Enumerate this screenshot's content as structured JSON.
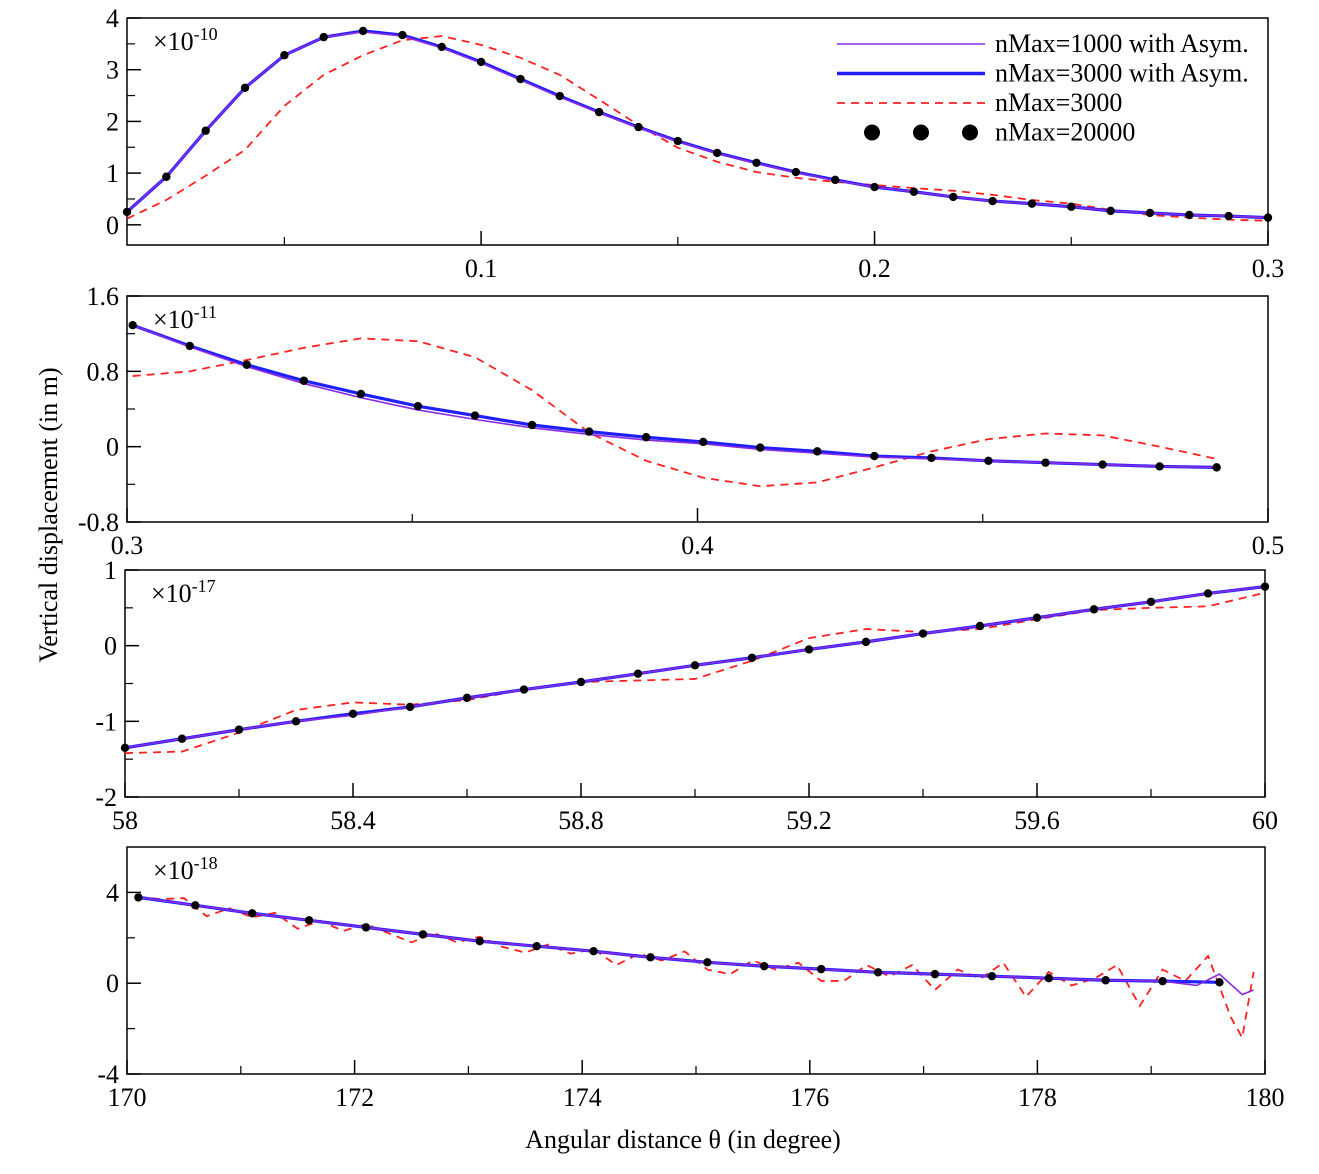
{
  "chart_data": {
    "type": "line",
    "ylabel": "Vertical displacement (in m)",
    "xlabel": "Angular distance θ (in degree)",
    "legend": {
      "placement": "top-right",
      "entries": [
        {
          "name": "nMax=1000 with Asym.",
          "color": "#8a2be2",
          "style": "thin solid"
        },
        {
          "name": "nMax=3000 with Asym.",
          "color": "#1f1fff",
          "style": "thick solid"
        },
        {
          "name": "nMax=3000",
          "color": "#ff2020",
          "style": "dashed"
        },
        {
          "name": "nMax=20000",
          "color": "#000000",
          "style": "dots"
        }
      ]
    },
    "panels": [
      {
        "multiplier": "×10",
        "exponent": "-10",
        "xlim": [
          0.01,
          0.3
        ],
        "ylim": [
          -0.39,
          4
        ],
        "xticks": [
          0.1,
          0.2,
          0.3
        ],
        "xtick_labels": [
          "0.1",
          "0.2",
          "0.3"
        ],
        "xminor": [
          0.05,
          0.15,
          0.25
        ],
        "yticks": [
          0,
          1,
          2,
          3,
          4
        ],
        "ytick_labels": [
          "0",
          "1",
          "2",
          "3",
          "4"
        ],
        "x": [
          0.01,
          0.02,
          0.03,
          0.04,
          0.05,
          0.06,
          0.07,
          0.08,
          0.09,
          0.1,
          0.11,
          0.12,
          0.13,
          0.14,
          0.15,
          0.16,
          0.17,
          0.18,
          0.19,
          0.2,
          0.21,
          0.22,
          0.23,
          0.24,
          0.25,
          0.26,
          0.27,
          0.28,
          0.29,
          0.3
        ],
        "dots": [
          0.25,
          0.93,
          1.82,
          2.65,
          3.28,
          3.63,
          3.75,
          3.67,
          3.44,
          3.15,
          2.82,
          2.49,
          2.18,
          1.89,
          1.62,
          1.39,
          1.2,
          1.02,
          0.87,
          0.73,
          0.64,
          0.54,
          0.46,
          0.41,
          0.35,
          0.27,
          0.23,
          0.19,
          0.17,
          0.14
        ],
        "purple": [
          0.25,
          0.93,
          1.82,
          2.65,
          3.28,
          3.63,
          3.73,
          3.65,
          3.42,
          3.13,
          2.8,
          2.47,
          2.17,
          1.88,
          1.61,
          1.38,
          1.19,
          1.01,
          0.86,
          0.73,
          0.64,
          0.54,
          0.46,
          0.41,
          0.35,
          0.27,
          0.23,
          0.19,
          0.17,
          0.14
        ],
        "blue": [
          0.25,
          0.93,
          1.82,
          2.65,
          3.28,
          3.63,
          3.75,
          3.67,
          3.44,
          3.15,
          2.82,
          2.49,
          2.18,
          1.89,
          1.62,
          1.39,
          1.2,
          1.02,
          0.87,
          0.73,
          0.64,
          0.54,
          0.46,
          0.41,
          0.35,
          0.27,
          0.23,
          0.19,
          0.17,
          0.14
        ],
        "red": [
          0.12,
          0.48,
          0.95,
          1.45,
          2.3,
          2.9,
          3.28,
          3.57,
          3.65,
          3.48,
          3.23,
          2.9,
          2.42,
          1.93,
          1.49,
          1.22,
          1.02,
          0.91,
          0.83,
          0.77,
          0.71,
          0.66,
          0.58,
          0.48,
          0.41,
          0.29,
          0.19,
          0.14,
          0.1,
          0.08
        ]
      },
      {
        "multiplier": "×10",
        "exponent": "-11",
        "xlim": [
          0.3,
          0.5
        ],
        "ylim": [
          -0.8,
          1.6
        ],
        "xticks": [
          0.3,
          0.4,
          0.5
        ],
        "xtick_labels": [
          "0.3",
          "0.4",
          "0.5"
        ],
        "xminor": [
          0.35,
          0.45
        ],
        "yticks": [
          -0.8,
          0,
          0.8,
          1.6
        ],
        "ytick_labels": [
          "-0.8",
          "0",
          "0.8",
          "1.6"
        ],
        "x": [
          0.301,
          0.311,
          0.321,
          0.331,
          0.341,
          0.351,
          0.361,
          0.371,
          0.381,
          0.391,
          0.401,
          0.411,
          0.421,
          0.431,
          0.441,
          0.451,
          0.461,
          0.471,
          0.481,
          0.491
        ],
        "dots": [
          1.29,
          1.07,
          0.87,
          0.7,
          0.56,
          0.43,
          0.33,
          0.23,
          0.16,
          0.1,
          0.05,
          -0.01,
          -0.05,
          -0.1,
          -0.12,
          -0.15,
          -0.17,
          -0.19,
          -0.21,
          -0.22
        ],
        "purple": [
          1.29,
          1.06,
          0.85,
          0.67,
          0.52,
          0.39,
          0.29,
          0.2,
          0.13,
          0.07,
          0.03,
          -0.03,
          -0.07,
          -0.11,
          -0.13,
          -0.15,
          -0.17,
          -0.19,
          -0.21,
          -0.22
        ],
        "blue": [
          1.29,
          1.07,
          0.87,
          0.7,
          0.56,
          0.43,
          0.33,
          0.23,
          0.16,
          0.1,
          0.05,
          -0.01,
          -0.05,
          -0.1,
          -0.12,
          -0.15,
          -0.17,
          -0.19,
          -0.21,
          -0.22
        ],
        "red": [
          0.75,
          0.8,
          0.92,
          1.05,
          1.15,
          1.12,
          0.95,
          0.6,
          0.15,
          -0.15,
          -0.33,
          -0.42,
          -0.38,
          -0.22,
          -0.05,
          0.08,
          0.14,
          0.12,
          0.0,
          -0.13
        ]
      },
      {
        "multiplier": "×10",
        "exponent": "-17",
        "xlim": [
          58,
          60
        ],
        "ylim": [
          -2,
          1
        ],
        "xticks": [
          58,
          58.4,
          58.8,
          59.2,
          59.6,
          60
        ],
        "xtick_labels": [
          "58",
          "58.4",
          "58.8",
          "59.2",
          "59.6",
          "60"
        ],
        "xminor": [
          58.2,
          58.6,
          59.0,
          59.4,
          59.8
        ],
        "yticks": [
          -2,
          -1,
          0,
          1
        ],
        "ytick_labels": [
          "-2",
          "-1",
          "0",
          "1"
        ],
        "x": [
          58.0,
          58.1,
          58.2,
          58.3,
          58.4,
          58.5,
          58.6,
          58.7,
          58.8,
          58.9,
          59.0,
          59.1,
          59.2,
          59.3,
          59.4,
          59.5,
          59.6,
          59.7,
          59.8,
          59.9,
          60.0
        ],
        "dots": [
          -1.35,
          -1.23,
          -1.11,
          -1.0,
          -0.9,
          -0.81,
          -0.69,
          -0.58,
          -0.48,
          -0.37,
          -0.26,
          -0.16,
          -0.05,
          0.05,
          0.16,
          0.26,
          0.37,
          0.48,
          0.58,
          0.69,
          0.78
        ],
        "purple": [
          -1.35,
          -1.23,
          -1.11,
          -1.0,
          -0.92,
          -0.81,
          -0.69,
          -0.58,
          -0.48,
          -0.37,
          -0.26,
          -0.16,
          -0.05,
          0.05,
          0.16,
          0.26,
          0.37,
          0.48,
          0.58,
          0.69,
          0.78
        ],
        "blue": [
          -1.35,
          -1.23,
          -1.11,
          -1.0,
          -0.9,
          -0.81,
          -0.69,
          -0.58,
          -0.48,
          -0.37,
          -0.26,
          -0.16,
          -0.05,
          0.05,
          0.16,
          0.26,
          0.37,
          0.48,
          0.58,
          0.69,
          0.78
        ],
        "red": [
          -1.42,
          -1.4,
          -1.15,
          -0.85,
          -0.75,
          -0.78,
          -0.72,
          -0.58,
          -0.48,
          -0.46,
          -0.44,
          -0.2,
          0.1,
          0.22,
          0.18,
          0.22,
          0.35,
          0.47,
          0.5,
          0.52,
          0.7
        ]
      },
      {
        "multiplier": "×10",
        "exponent": "-18",
        "xlim": [
          170,
          180
        ],
        "ylim": [
          -4,
          6
        ],
        "xticks": [
          170,
          172,
          174,
          176,
          178,
          180
        ],
        "xtick_labels": [
          "170",
          "172",
          "174",
          "176",
          "178",
          "180"
        ],
        "xminor": [
          171,
          173,
          175,
          177,
          179
        ],
        "yticks": [
          -4,
          0,
          4
        ],
        "ytick_labels": [
          "-4",
          "0",
          "4"
        ],
        "yminor": [
          -2,
          2
        ],
        "x": [
          170.1,
          170.6,
          171.1,
          171.6,
          172.1,
          172.6,
          173.1,
          173.6,
          174.1,
          174.6,
          175.1,
          175.6,
          176.1,
          176.6,
          177.1,
          177.6,
          178.1,
          178.6,
          179.1,
          179.6
        ],
        "dots": [
          3.78,
          3.43,
          3.08,
          2.77,
          2.46,
          2.15,
          1.85,
          1.63,
          1.41,
          1.14,
          0.92,
          0.75,
          0.62,
          0.48,
          0.4,
          0.31,
          0.22,
          0.13,
          0.09,
          0.04
        ],
        "blue": [
          3.78,
          3.43,
          3.08,
          2.77,
          2.46,
          2.15,
          1.85,
          1.63,
          1.41,
          1.14,
          0.92,
          0.75,
          0.62,
          0.48,
          0.4,
          0.31,
          0.22,
          0.13,
          0.09,
          0.04
        ],
        "purple_x": [
          170.1,
          170.6,
          171.1,
          171.6,
          172.1,
          172.6,
          173.1,
          173.6,
          174.1,
          174.6,
          175.1,
          175.6,
          176.1,
          176.6,
          177.1,
          177.6,
          178.1,
          178.6,
          179.1,
          179.4,
          179.6,
          179.8,
          179.9
        ],
        "purple": [
          3.78,
          3.43,
          3.08,
          2.77,
          2.46,
          2.15,
          1.85,
          1.63,
          1.41,
          1.14,
          0.92,
          0.75,
          0.62,
          0.48,
          0.4,
          0.31,
          0.22,
          0.13,
          0.09,
          -0.1,
          0.4,
          -0.5,
          -0.3
        ],
        "red_x": [
          170.1,
          170.3,
          170.5,
          170.7,
          170.9,
          171.1,
          171.3,
          171.5,
          171.7,
          171.9,
          172.1,
          172.3,
          172.5,
          172.7,
          172.9,
          173.1,
          173.3,
          173.5,
          173.7,
          173.9,
          174.1,
          174.3,
          174.5,
          174.7,
          174.9,
          175.1,
          175.3,
          175.5,
          175.7,
          175.9,
          176.1,
          176.3,
          176.5,
          176.7,
          176.9,
          177.1,
          177.3,
          177.5,
          177.7,
          177.9,
          178.1,
          178.3,
          178.5,
          178.7,
          178.9,
          179.1,
          179.3,
          179.5,
          179.7,
          179.8,
          179.9
        ],
        "red": [
          3.8,
          3.7,
          3.75,
          2.95,
          3.3,
          2.9,
          3.1,
          2.4,
          2.75,
          2.3,
          2.6,
          2.2,
          1.8,
          2.2,
          1.8,
          2.05,
          1.6,
          1.35,
          1.7,
          1.3,
          1.5,
          0.8,
          1.3,
          1.0,
          1.4,
          0.6,
          0.4,
          1.0,
          0.6,
          0.9,
          0.1,
          0.1,
          0.8,
          0.3,
          0.8,
          -0.3,
          0.6,
          0.2,
          0.9,
          -0.6,
          0.5,
          -0.1,
          0.2,
          0.8,
          -1.0,
          0.6,
          0.1,
          1.2,
          -1.5,
          -2.4,
          0.5
        ]
      }
    ]
  }
}
